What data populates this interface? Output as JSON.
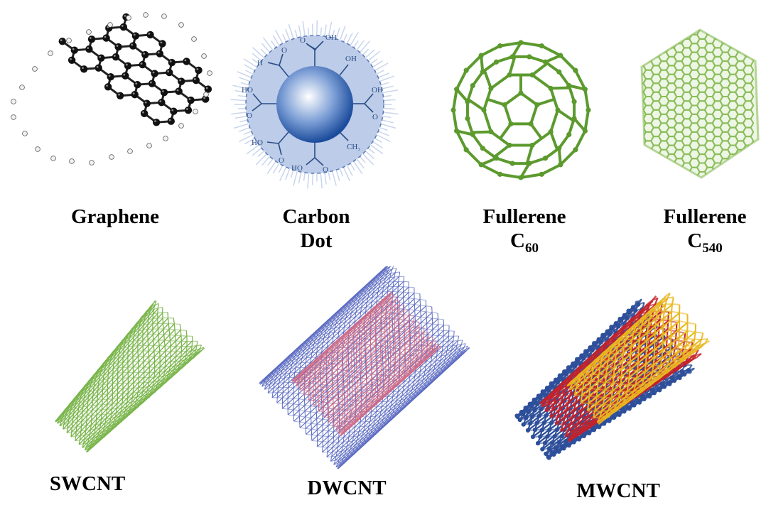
{
  "labels": {
    "graphene": "Graphene",
    "carbon_dot_line1": "Carbon",
    "carbon_dot_line2": "Dot",
    "fullerene_c60_line1": "Fullerene",
    "fullerene_c60_base": "C",
    "fullerene_c60_sub": "60",
    "fullerene_c540_line1": "Fullerene",
    "fullerene_c540_base": "C",
    "fullerene_c540_sub": "540",
    "swcnt": "SWCNT",
    "dwcnt": "DWCNT",
    "mwcnt": "MWCNT"
  },
  "carbon_dot_groups": {
    "cooh_top": "OH",
    "oh_top": "OH",
    "ho_left": "HO",
    "oh_right": "OH",
    "ho_lower_left": "HO",
    "ch3": "CH₃",
    "ho_bottom": "HO",
    "o_left": "O",
    "h_left": "H",
    "o_top": "O",
    "o_right": "O",
    "o_lower": "O",
    "o_bottom": "O",
    "o_left2": "O"
  },
  "colors": {
    "graphene_atom": "#111111",
    "graphene_hydrogen": "#dddddd",
    "carbon_dot_shell": "#b9cbe9",
    "carbon_dot_core": "#1f55a6",
    "carbon_dot_text": "#2b4d85",
    "fullerene_c60": "#5c9a2e",
    "fullerene_c540": "#8bbd5a",
    "swcnt": "#79b54a",
    "dwcnt_outer": "#5b6bc2",
    "dwcnt_inner": "#d06b86",
    "mwcnt_outer": "#2e4f9a",
    "mwcnt_middle": "#c4222b",
    "mwcnt_inner": "#e9b820"
  }
}
